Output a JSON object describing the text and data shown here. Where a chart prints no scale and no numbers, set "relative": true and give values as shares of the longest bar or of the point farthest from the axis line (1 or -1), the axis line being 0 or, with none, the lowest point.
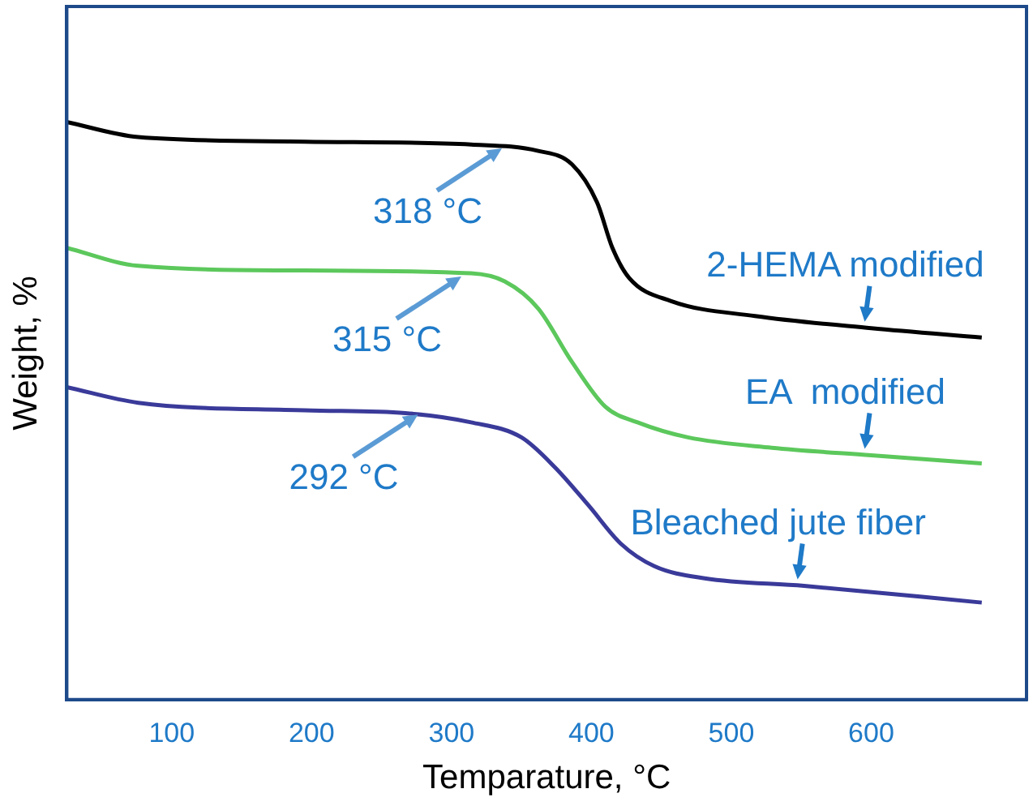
{
  "chart_data": {
    "type": "line",
    "relative": true,
    "xlabel": "Temparature, °C",
    "ylabel": "Weight, %",
    "xlim": [
      25,
      711
    ],
    "xticks": [
      100,
      200,
      300,
      400,
      500,
      600
    ],
    "grid": false,
    "legend": false,
    "marker": "none",
    "line_style": "solid",
    "series": [
      {
        "name": "2-HEMA modified",
        "color": "#000000",
        "x": [
          25,
          76,
          195,
          314,
          362,
          386,
          404,
          415,
          427,
          457,
          517,
          600,
          679
        ],
        "values": [
          1,
          0.974,
          0.966,
          0.961,
          0.95,
          0.927,
          0.861,
          0.782,
          0.73,
          0.69,
          0.664,
          0.643,
          0.627
        ]
      },
      {
        "name": "EA  modified",
        "color": "#5cc85c",
        "x": [
          25,
          76,
          195,
          314,
          338,
          362,
          386,
          410,
          433,
          469,
          529,
          600,
          679
        ],
        "values": [
          0.782,
          0.751,
          0.743,
          0.738,
          0.724,
          0.677,
          0.585,
          0.507,
          0.48,
          0.454,
          0.436,
          0.423,
          0.409
        ]
      },
      {
        "name": "Bleached jute fiber",
        "color": "#3a3a9a",
        "x": [
          25,
          76,
          195,
          267,
          314,
          350,
          374,
          398,
          421,
          445,
          481,
          552,
          679
        ],
        "values": [
          0.541,
          0.514,
          0.501,
          0.496,
          0.48,
          0.454,
          0.402,
          0.336,
          0.27,
          0.231,
          0.21,
          0.197,
          0.168
        ]
      }
    ],
    "annotations": [
      {
        "text": "318 °C",
        "x": 336,
        "y": 0.96
      },
      {
        "text": "315 °C",
        "x": 307,
        "y": 0.738
      },
      {
        "text": "292 °C",
        "x": 276,
        "y": 0.499
      }
    ]
  }
}
